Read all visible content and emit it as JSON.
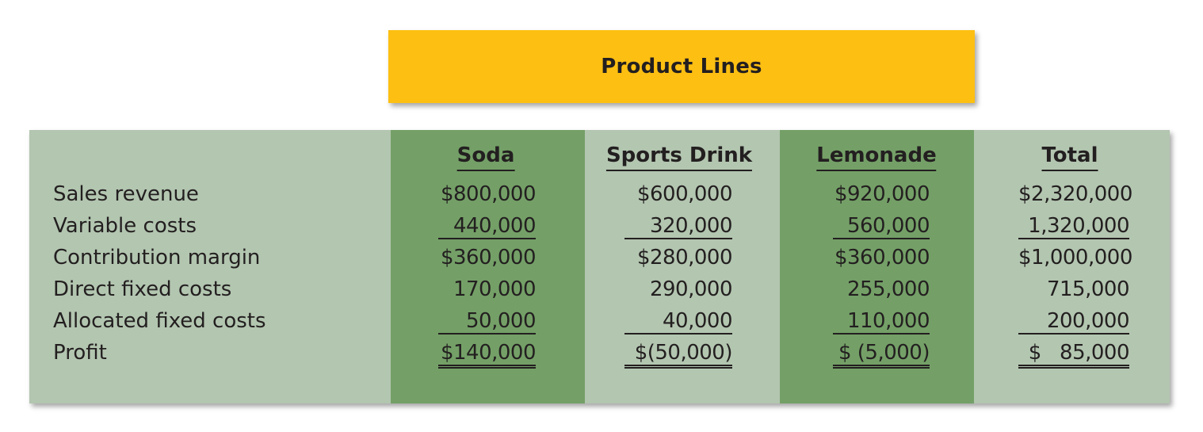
{
  "banner": {
    "title": "Product Lines"
  },
  "columns": [
    {
      "key": "soda",
      "label": "Soda"
    },
    {
      "key": "sports",
      "label": "Sports Drink"
    },
    {
      "key": "lemonade",
      "label": "Lemonade"
    },
    {
      "key": "total",
      "label": "Total"
    }
  ],
  "rows": [
    {
      "label": "Sales revenue",
      "soda": "$800,000",
      "sports": "$600,000",
      "lemonade": "$920,000",
      "total": "$2,320,000"
    },
    {
      "label": "Variable costs",
      "soda": "440,000",
      "sports": "320,000",
      "lemonade": "560,000",
      "total": "1,320,000"
    },
    {
      "label": "Contribution margin",
      "soda": "$360,000",
      "sports": "$280,000",
      "lemonade": "$360,000",
      "total": "$1,000,000"
    },
    {
      "label": "Direct fixed costs",
      "soda": "170,000",
      "sports": "290,000",
      "lemonade": "255,000",
      "total": "715,000"
    },
    {
      "label": "Allocated fixed costs",
      "soda": "50,000",
      "sports": "40,000",
      "lemonade": "110,000",
      "total": "200,000"
    },
    {
      "label": "Profit",
      "soda": "$140,000",
      "sports": "$(50,000)",
      "lemonade": "$ (5,000)",
      "total": "$   85,000"
    }
  ],
  "colors": {
    "banner": "#fdbf12",
    "panel": "#b3c6b0",
    "band": "#74a067"
  }
}
